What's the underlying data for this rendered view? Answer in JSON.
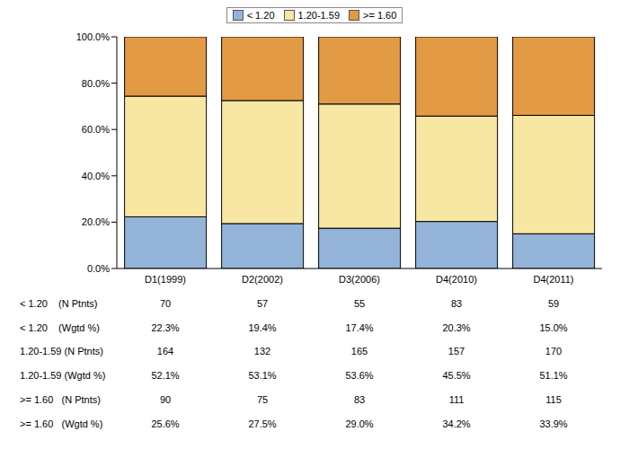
{
  "chart_data": {
    "type": "bar",
    "stacked": true,
    "grid": false,
    "legend": "top",
    "categories": [
      "D1(1999)",
      "D2(2002)",
      "D3(2006)",
      "D4(2010)",
      "D4(2011)"
    ],
    "ylim": [
      0,
      100
    ],
    "yticks": [
      {
        "value": 0,
        "label": "0.0%"
      },
      {
        "value": 20,
        "label": "20.0%"
      },
      {
        "value": 40,
        "label": "40.0%"
      },
      {
        "value": 60,
        "label": "60.0%"
      },
      {
        "value": 80,
        "label": "80.0%"
      },
      {
        "value": 100,
        "label": "100.0%"
      }
    ],
    "series": [
      {
        "name": "< 1.20",
        "color": "#93b4d8",
        "values": [
          22.3,
          19.4,
          17.4,
          20.3,
          15.0
        ],
        "value_labels": [
          "22.3%",
          "19.4%",
          "17.4%",
          "20.3%",
          "15.0%"
        ],
        "counts": [
          70,
          57,
          55,
          83,
          59
        ],
        "counts_row_label": "< 1.20    (N Ptnts)",
        "values_row_label": "< 1.20    (Wgtd %)"
      },
      {
        "name": "1.20-1.59",
        "color": "#f8e7a2",
        "values": [
          52.1,
          53.1,
          53.6,
          45.5,
          51.1
        ],
        "value_labels": [
          "52.1%",
          "53.1%",
          "53.6%",
          "45.5%",
          "51.1%"
        ],
        "counts": [
          164,
          132,
          165,
          157,
          170
        ],
        "counts_row_label": "1.20-1.59 (N Ptnts)",
        "values_row_label": "1.20-1.59 (Wgtd %)"
      },
      {
        "name": ">= 1.60",
        "color": "#e39a45",
        "values": [
          25.6,
          27.5,
          29.0,
          34.2,
          33.9
        ],
        "value_labels": [
          "25.6%",
          "27.5%",
          "29.0%",
          "34.2%",
          "33.9%"
        ],
        "counts": [
          90,
          75,
          83,
          111,
          115
        ],
        "counts_row_label": ">= 1.60   (N Ptnts)",
        "values_row_label": ">= 1.60   (Wgtd %)"
      }
    ]
  }
}
